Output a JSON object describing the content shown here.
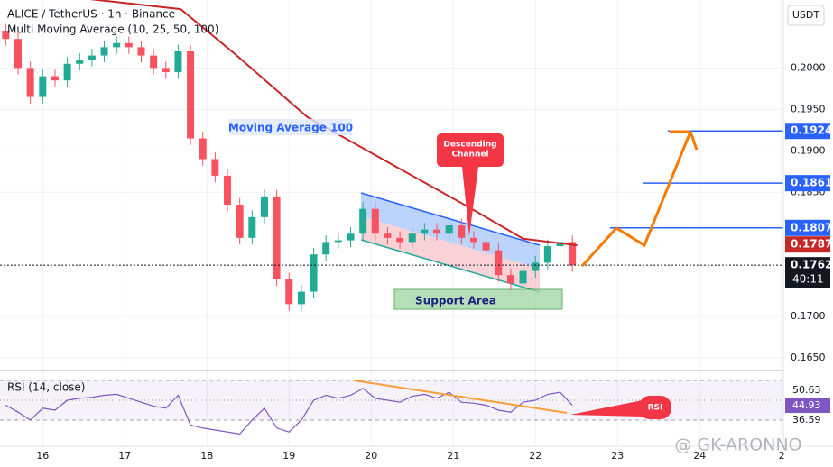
{
  "chart_data": {
    "type": "candlestick",
    "title": "ALICE / TetherUS · 1h · Binance",
    "subtitle": "Multi Moving Average (10, 25, 50, 100)",
    "currency": "USDT",
    "countdown": "40:11",
    "watermark": "@ GK-ARONNO",
    "annotations": {
      "ma_label": "Moving Average 100",
      "channel_label_1": "Descending",
      "channel_label_2": "Channel",
      "support_label": "Support Area",
      "rsi_callout": "RSI"
    },
    "xlim": [
      15.48,
      25.02
    ],
    "xticks": [
      16,
      17,
      18,
      19,
      20,
      21,
      22,
      23,
      24,
      {
        "value": 25,
        "label": "2"
      }
    ],
    "ylim": [
      0.1636,
      0.2082
    ],
    "yticks": [
      {
        "value": 0.2,
        "label": "0.2000"
      },
      {
        "value": 0.195,
        "label": "0.1950"
      },
      {
        "value": 0.19,
        "label": "0.1900"
      },
      {
        "value": 0.185,
        "label": "0.1850"
      },
      {
        "value": 0.17,
        "label": "0.1700"
      },
      {
        "value": 0.165,
        "label": "0.1650"
      }
    ],
    "grid": true,
    "up_color": "#22ab94",
    "down_color": "#f7525f",
    "candles": {
      "x": [
        15.55,
        15.7,
        15.85,
        16,
        16.15,
        16.3,
        16.45,
        16.6,
        16.75,
        16.9,
        17.05,
        17.2,
        17.35,
        17.5,
        17.65,
        17.8,
        17.95,
        18.1,
        18.25,
        18.4,
        18.55,
        18.7,
        18.85,
        19,
        19.15,
        19.3,
        19.45,
        19.6,
        19.75,
        19.9,
        20.05,
        20.2,
        20.35,
        20.5,
        20.65,
        20.8,
        20.95,
        21.1,
        21.25,
        21.4,
        21.55,
        21.7,
        21.85,
        22,
        22.15,
        22.3,
        22.45
      ],
      "open": [
        0.2045,
        0.2035,
        0.2,
        0.1965,
        0.199,
        0.1985,
        0.2005,
        0.201,
        0.2015,
        0.2025,
        0.203,
        0.2025,
        0.2015,
        0.2,
        0.1995,
        0.202,
        0.1915,
        0.189,
        0.187,
        0.1835,
        0.1795,
        0.182,
        0.1845,
        0.1745,
        0.1715,
        0.173,
        0.1775,
        0.179,
        0.1792,
        0.18,
        0.183,
        0.18,
        0.1795,
        0.179,
        0.18,
        0.1805,
        0.18,
        0.181,
        0.1795,
        0.179,
        0.178,
        0.175,
        0.174,
        0.1755,
        0.1765,
        0.1785,
        0.179
      ],
      "high": [
        0.2053,
        0.2043,
        0.2008,
        0.1998,
        0.1998,
        0.2013,
        0.2018,
        0.2023,
        0.2033,
        0.2038,
        0.2038,
        0.2033,
        0.2023,
        0.2008,
        0.2028,
        0.2028,
        0.1923,
        0.1898,
        0.1878,
        0.1843,
        0.1828,
        0.1853,
        0.1853,
        0.1753,
        0.1738,
        0.1783,
        0.1798,
        0.18,
        0.1808,
        0.1838,
        0.1838,
        0.1808,
        0.1803,
        0.1808,
        0.1813,
        0.1813,
        0.1818,
        0.1818,
        0.1803,
        0.1798,
        0.1788,
        0.1758,
        0.1763,
        0.1773,
        0.1793,
        0.1798,
        0.1798
      ],
      "low": [
        0.2027,
        0.1992,
        0.1957,
        0.1957,
        0.1977,
        0.1977,
        0.1997,
        0.2002,
        0.2007,
        0.2017,
        0.2017,
        0.2007,
        0.1992,
        0.1987,
        0.1987,
        0.1907,
        0.1882,
        0.1862,
        0.1827,
        0.1787,
        0.1787,
        0.1812,
        0.1737,
        0.1707,
        0.1707,
        0.1722,
        0.1767,
        0.1782,
        0.1784,
        0.1792,
        0.1792,
        0.1787,
        0.1782,
        0.1782,
        0.1792,
        0.1792,
        0.1792,
        0.1787,
        0.1782,
        0.1772,
        0.1742,
        0.1732,
        0.1732,
        0.1747,
        0.1757,
        0.1777,
        0.1754
      ],
      "close": [
        0.2035,
        0.2,
        0.1965,
        0.199,
        0.1985,
        0.2005,
        0.201,
        0.2015,
        0.2025,
        0.203,
        0.2025,
        0.2015,
        0.2,
        0.1995,
        0.202,
        0.1915,
        0.189,
        0.187,
        0.1835,
        0.1795,
        0.182,
        0.1845,
        0.1745,
        0.1715,
        0.173,
        0.1775,
        0.179,
        0.1792,
        0.18,
        0.183,
        0.18,
        0.1795,
        0.179,
        0.18,
        0.1805,
        0.18,
        0.181,
        0.1795,
        0.179,
        0.178,
        0.175,
        0.174,
        0.1755,
        0.1765,
        0.1785,
        0.179,
        0.1762
      ]
    },
    "series": [
      {
        "name": "Moving Average 100",
        "color": "#c62828",
        "x": [
          15.48,
          17.68,
          18.34,
          19.22,
          20.1,
          21.19,
          21.85,
          22.51
        ],
        "values": [
          0.2095,
          0.2071,
          0.2017,
          0.1941,
          0.1892,
          0.1832,
          0.1794,
          0.1786
        ]
      }
    ],
    "levels": [
      0.1924,
      0.1861,
      0.1807
    ],
    "level_color": "#2962ff",
    "ma_last": 0.1787,
    "last_price": 0.1762,
    "rsi": {
      "title": "RSI (14, close)",
      "ylim": [
        3.6,
        79.1
      ],
      "bands": [
        70,
        50,
        30
      ],
      "color": "#7e57c2",
      "values": [
        45,
        38,
        30,
        42,
        40,
        50,
        52,
        53,
        55,
        56,
        52,
        48,
        44,
        42,
        55,
        25,
        22,
        20,
        18,
        16,
        30,
        42,
        22,
        18,
        30,
        50,
        55,
        52,
        55,
        62,
        52,
        50,
        48,
        54,
        56,
        52,
        58,
        48,
        47,
        45,
        40,
        38,
        48,
        50,
        56,
        58,
        45
      ],
      "labels": [
        50.63,
        44.93,
        36.59
      ]
    }
  }
}
